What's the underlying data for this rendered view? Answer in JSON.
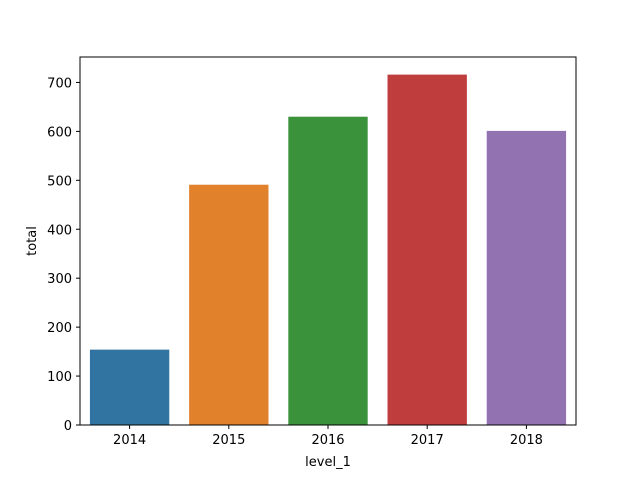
{
  "chart_data": {
    "type": "bar",
    "x_label": "level_1",
    "y_label": "total",
    "categories": [
      "2014",
      "2015",
      "2016",
      "2017",
      "2018"
    ],
    "values": [
      154,
      491,
      630,
      716,
      601
    ],
    "colors": [
      "#3274a1",
      "#e1812c",
      "#3a923a",
      "#c03d3e",
      "#9372b2"
    ],
    "ylim": [
      0,
      752
    ],
    "yticks": [
      0,
      100,
      200,
      300,
      400,
      500,
      600,
      700
    ]
  }
}
